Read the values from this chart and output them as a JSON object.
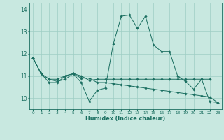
{
  "xlabel": "Humidex (Indice chaleur)",
  "x_ticks": [
    0,
    1,
    2,
    3,
    4,
    5,
    6,
    7,
    8,
    9,
    10,
    11,
    12,
    13,
    14,
    15,
    16,
    17,
    18,
    19,
    20,
    21,
    22,
    23
  ],
  "ylim": [
    9.5,
    14.3
  ],
  "xlim": [
    -0.5,
    23.5
  ],
  "yticks": [
    10,
    11,
    12,
    13,
    14
  ],
  "bg_color": "#c8e8e0",
  "grid_color": "#9ecec4",
  "line_color": "#1a6e60",
  "series": [
    [
      11.8,
      11.1,
      10.7,
      10.7,
      11.0,
      11.1,
      10.7,
      9.85,
      10.35,
      10.45,
      12.45,
      13.7,
      13.75,
      13.15,
      13.7,
      12.4,
      12.1,
      12.1,
      11.0,
      10.75,
      10.4,
      10.85,
      9.85,
      9.8
    ],
    [
      11.8,
      11.1,
      10.85,
      10.75,
      10.85,
      11.1,
      11.0,
      10.8,
      10.85,
      10.85,
      10.85,
      10.85,
      10.85,
      10.85,
      10.85,
      10.85,
      10.85,
      10.85,
      10.85,
      10.85,
      10.85,
      10.85,
      10.85,
      null
    ],
    [
      11.8,
      11.1,
      10.85,
      10.85,
      11.0,
      11.1,
      10.9,
      10.9,
      10.7,
      10.7,
      10.65,
      10.6,
      10.55,
      10.5,
      10.45,
      10.4,
      10.35,
      10.3,
      10.25,
      10.2,
      10.15,
      10.1,
      10.05,
      9.8
    ]
  ]
}
